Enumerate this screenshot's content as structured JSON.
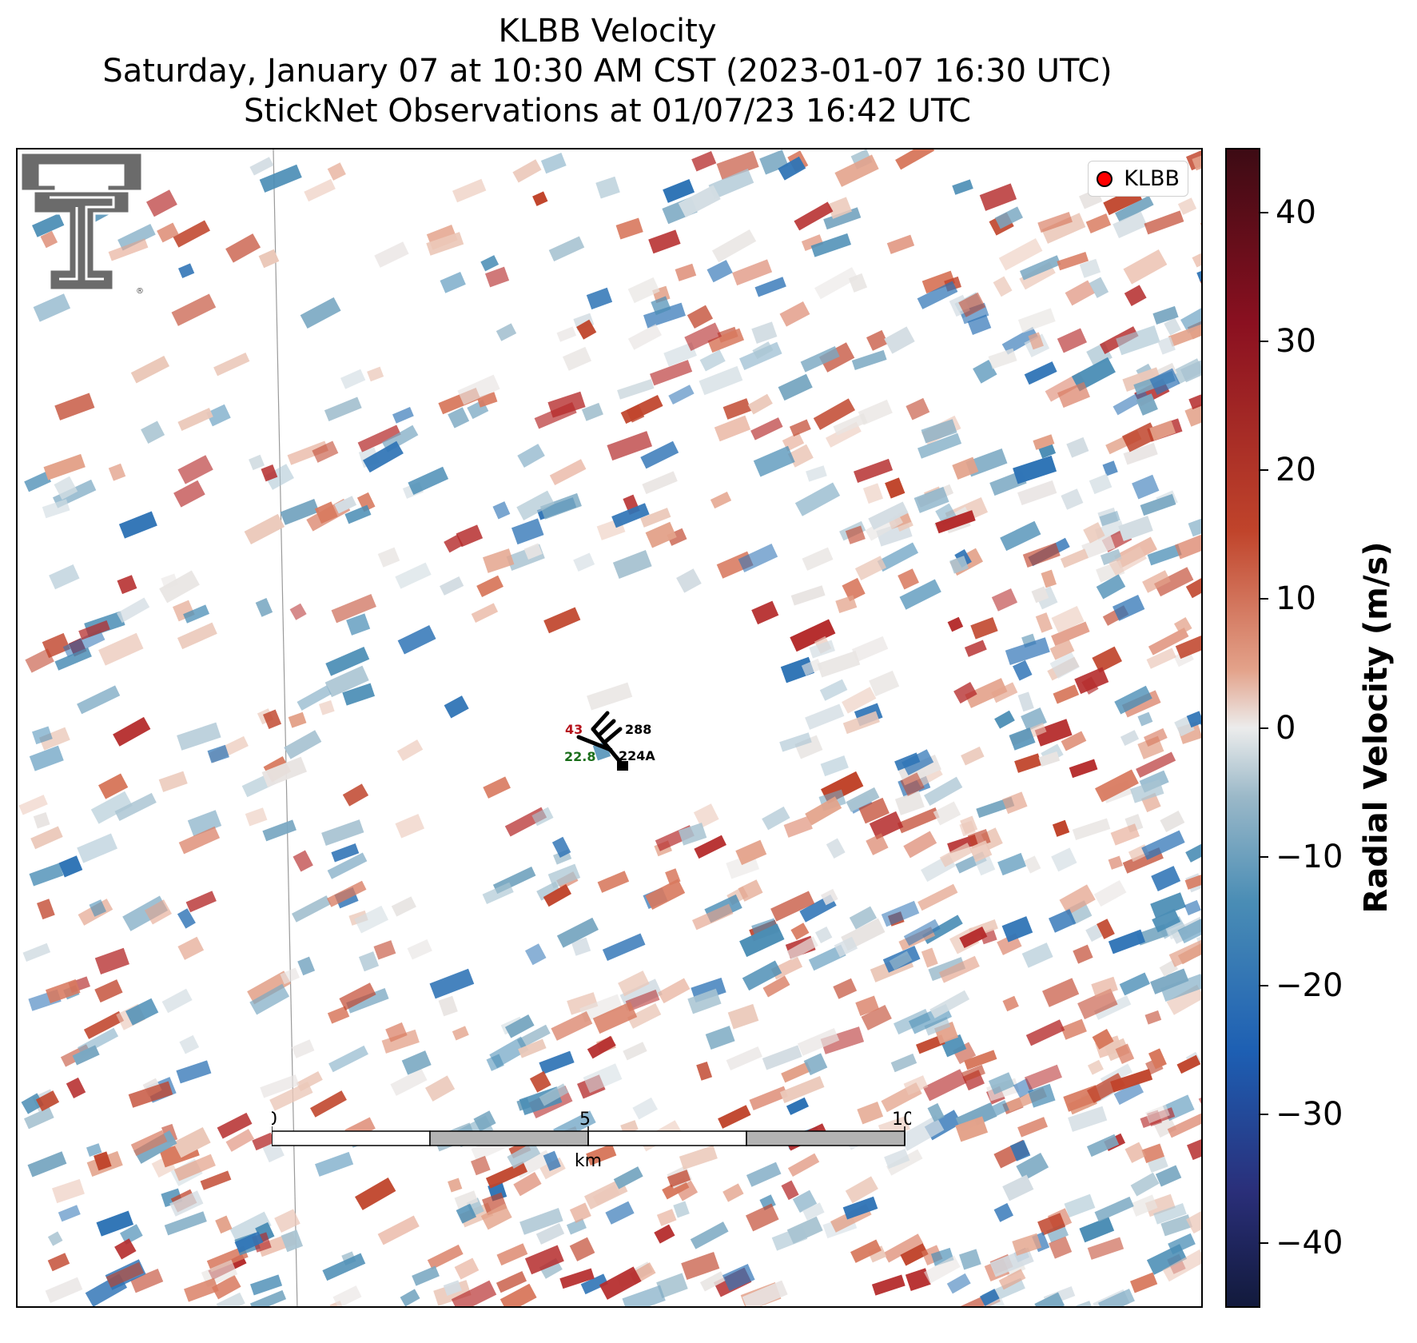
{
  "title": {
    "line1": "KLBB Velocity",
    "line2": "Saturday, January 07 at 10:30 AM CST (2023-01-07 16:30 UTC)",
    "line3": "StickNet Observations at 01/07/23 16:42 UTC"
  },
  "legend": {
    "label": "KLBB",
    "marker_color": "#ff0000"
  },
  "logo": {
    "icon": "texas-tech-double-t-logo"
  },
  "station": {
    "temperature": "43",
    "temperature_color": "#b5121b",
    "dewpoint": "22.8",
    "dewpoint_color": "#1a6e1a",
    "pressure_code": "288",
    "station_id": "224A",
    "wind_icon": "wind-barb-icon"
  },
  "scalebar": {
    "ticks": [
      "0",
      "5",
      "10"
    ],
    "unit": "km"
  },
  "colorbar": {
    "title": "Radial Velocity (m/s)",
    "ticks": [
      "40",
      "30",
      "20",
      "10",
      "0",
      "−10",
      "−20",
      "−30",
      "−40"
    ],
    "tick_values": [
      40,
      30,
      20,
      10,
      0,
      -10,
      -20,
      -30,
      -40
    ],
    "range": [
      -45,
      45
    ],
    "colors": {
      "max": "#3d0b14",
      "strong_positive": "#8a1020",
      "positive": "#c0442b",
      "zero": "#ececec",
      "negative": "#4a8db5",
      "strong_negative": "#1d5fb3",
      "min": "#121a3c"
    }
  }
}
